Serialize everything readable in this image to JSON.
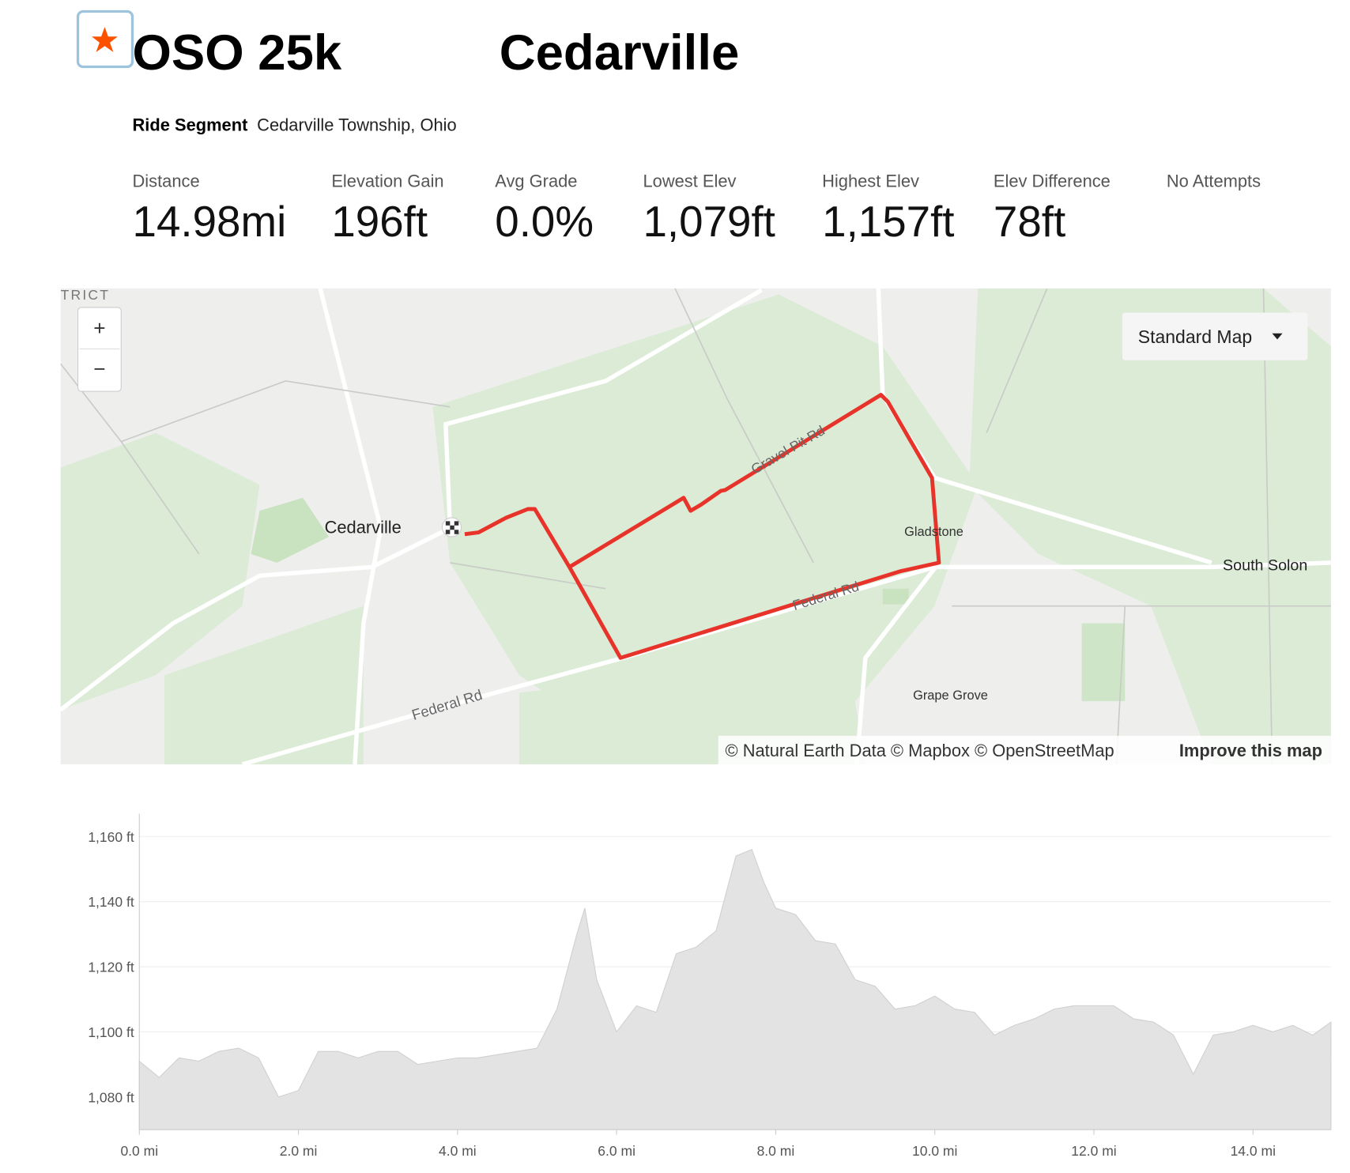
{
  "header": {
    "title_part1": "OSO 25k",
    "title_part2": "Cedarville",
    "segment_type": "Ride Segment",
    "location": "Cedarville Township, Ohio"
  },
  "stats": [
    {
      "label": "Distance",
      "value": "14.98mi"
    },
    {
      "label": "Elevation Gain",
      "value": "196ft"
    },
    {
      "label": "Avg Grade",
      "value": "0.0%"
    },
    {
      "label": "Lowest Elev",
      "value": "1,079ft"
    },
    {
      "label": "Highest Elev",
      "value": "1,157ft"
    },
    {
      "label": "Elev Difference",
      "value": "78ft"
    },
    {
      "label": "No Attempts"
    }
  ],
  "map": {
    "zoom_in": "+",
    "zoom_out": "−",
    "style_button": "Standard Map",
    "labels": [
      "TRICT",
      "Cedarville",
      "Gladstone",
      "South Solon",
      "Grape Grove",
      "Federal Rd",
      "Federal Rd",
      "Gravel Pit Rd"
    ],
    "attribution": "© Natural Earth Data © Mapbox © OpenStreetMap",
    "improve_link": "Improve this map"
  },
  "chart_data": {
    "type": "area",
    "x": [
      0,
      0.25,
      0.5,
      0.75,
      1.0,
      1.25,
      1.5,
      1.75,
      2.0,
      2.25,
      2.5,
      2.75,
      3.0,
      3.25,
      3.5,
      3.75,
      4.0,
      4.25,
      4.5,
      4.75,
      5.0,
      5.25,
      5.5,
      5.6,
      5.75,
      6.0,
      6.25,
      6.5,
      6.75,
      7.0,
      7.25,
      7.5,
      7.7,
      7.85,
      8.0,
      8.25,
      8.5,
      8.75,
      9.0,
      9.25,
      9.5,
      9.75,
      10.0,
      10.25,
      10.5,
      10.75,
      11.0,
      11.25,
      11.5,
      11.75,
      12.0,
      12.25,
      12.5,
      12.75,
      13.0,
      13.25,
      13.5,
      13.75,
      14.0,
      14.25,
      14.5,
      14.75,
      14.98
    ],
    "values": [
      1091,
      1086,
      1092,
      1091,
      1094,
      1095,
      1092,
      1080,
      1082,
      1094,
      1094,
      1092,
      1094,
      1094,
      1090,
      1091,
      1092,
      1092,
      1093,
      1094,
      1095,
      1107,
      1130,
      1138,
      1116,
      1100,
      1108,
      1106,
      1124,
      1126,
      1131,
      1154,
      1156,
      1146,
      1138,
      1136,
      1128,
      1127,
      1116,
      1114,
      1107,
      1108,
      1111,
      1107,
      1106,
      1099,
      1102,
      1104,
      1107,
      1108,
      1108,
      1108,
      1104,
      1103,
      1099,
      1087,
      1099,
      1100,
      1102,
      1100,
      1102,
      1099,
      1103
    ],
    "color": "#e3e3e3",
    "xlim": [
      0,
      14.98
    ],
    "ylim": [
      1070,
      1167
    ],
    "xticks": [
      {
        "value": 0,
        "label": "0.0 mi"
      },
      {
        "value": 2,
        "label": "2.0 mi"
      },
      {
        "value": 4,
        "label": "4.0 mi"
      },
      {
        "value": 6,
        "label": "6.0 mi"
      },
      {
        "value": 8,
        "label": "8.0 mi"
      },
      {
        "value": 10,
        "label": "10.0 mi"
      },
      {
        "value": 12,
        "label": "12.0 mi"
      },
      {
        "value": 14,
        "label": "14.0 mi"
      }
    ],
    "yticks": [
      {
        "value": 1080,
        "label": "1,080 ft"
      },
      {
        "value": 1100,
        "label": "1,100 ft"
      },
      {
        "value": 1120,
        "label": "1,120 ft"
      },
      {
        "value": 1140,
        "label": "1,140 ft"
      },
      {
        "value": 1160,
        "label": "1,160 ft"
      }
    ],
    "grid": true
  }
}
